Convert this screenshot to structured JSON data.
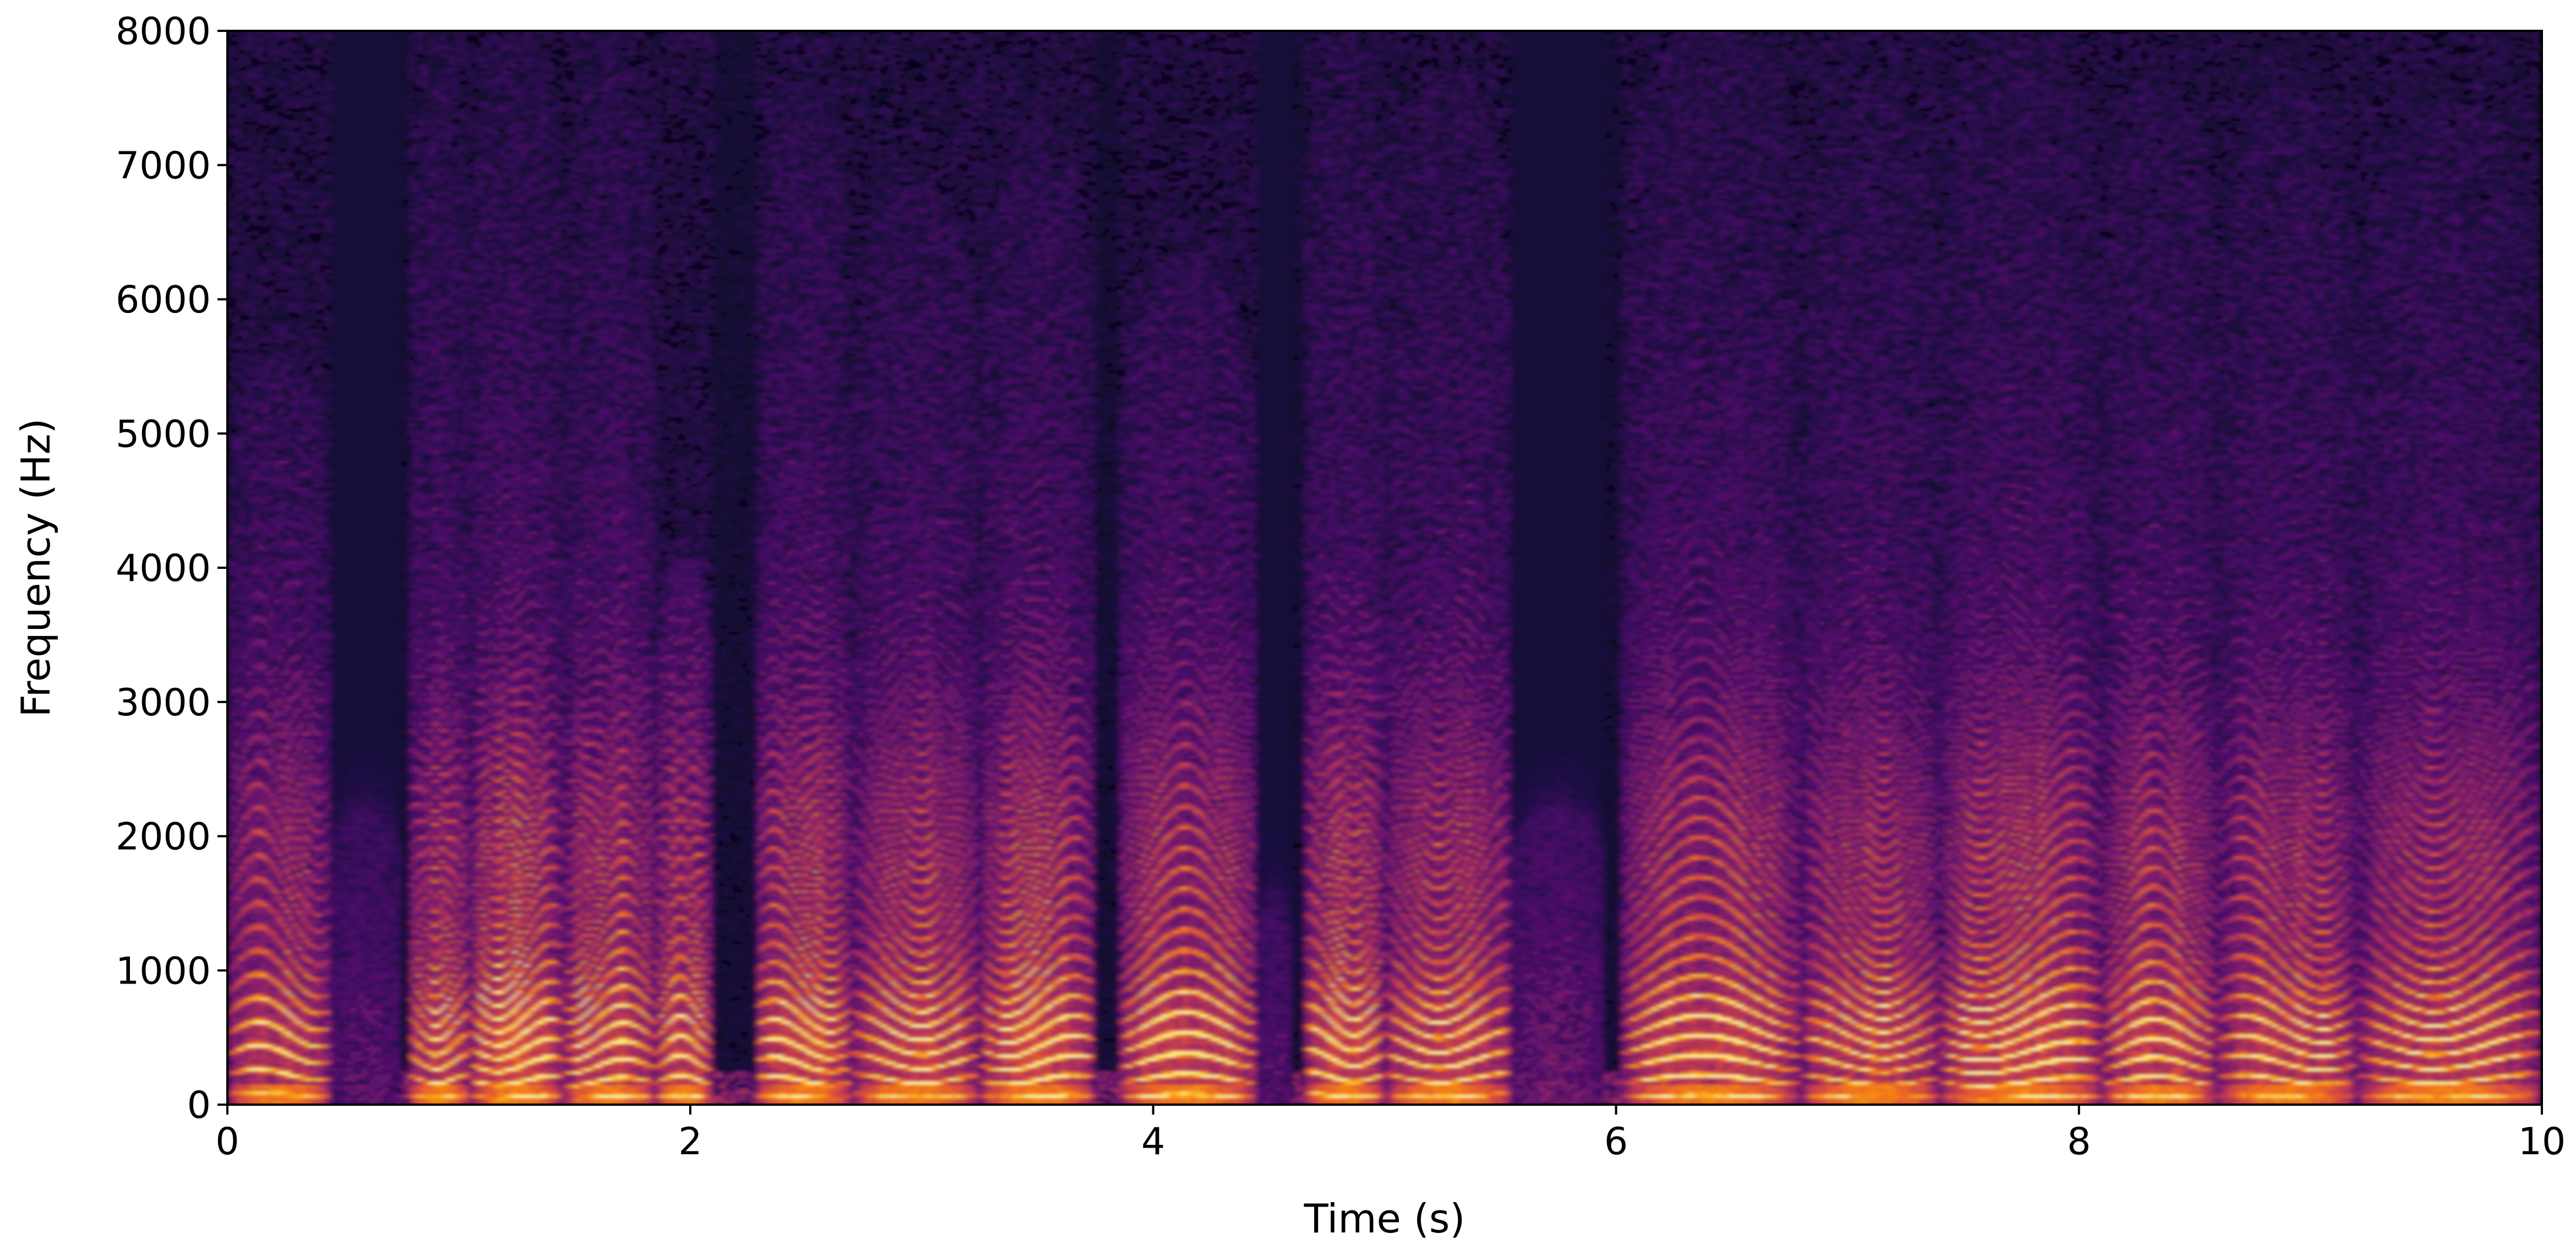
{
  "chart_data": {
    "type": "heatmap",
    "title": "",
    "xlabel": "Time (s)",
    "ylabel": "Frequency (Hz)",
    "xlim": [
      0,
      10
    ],
    "ylim": [
      0,
      8000
    ],
    "x_ticks": [
      0,
      2,
      4,
      6,
      8,
      10
    ],
    "x_tick_labels": [
      "0",
      "2",
      "4",
      "6",
      "8",
      "10"
    ],
    "y_ticks": [
      0,
      1000,
      2000,
      3000,
      4000,
      5000,
      6000,
      7000,
      8000
    ],
    "y_tick_labels": [
      "0",
      "1000",
      "2000",
      "3000",
      "4000",
      "5000",
      "6000",
      "7000",
      "8000"
    ],
    "colormap": "inferno",
    "colors": [
      "#000004",
      "#1b0c41",
      "#4a0c6b",
      "#781c6d",
      "#a52c60",
      "#cf4446",
      "#ed6925",
      "#fb9b06",
      "#f7d13d",
      "#fcffa4"
    ],
    "grid": false,
    "legend": "none",
    "segments": [
      {
        "start": 0.0,
        "end": 0.45,
        "f0": 150,
        "max_freq": 5500,
        "energy": 0.7
      },
      {
        "start": 0.45,
        "end": 0.75,
        "f0": 0,
        "max_freq": 2200,
        "energy": 0.25
      },
      {
        "start": 0.78,
        "end": 1.05,
        "f0": 130,
        "max_freq": 7800,
        "energy": 0.75
      },
      {
        "start": 1.05,
        "end": 1.45,
        "f0": 120,
        "max_freq": 8000,
        "energy": 1.0
      },
      {
        "start": 1.45,
        "end": 1.85,
        "f0": 115,
        "max_freq": 7800,
        "energy": 0.85
      },
      {
        "start": 1.85,
        "end": 2.1,
        "f0": 125,
        "max_freq": 4000,
        "energy": 0.8
      },
      {
        "start": 2.28,
        "end": 2.7,
        "f0": 120,
        "max_freq": 7500,
        "energy": 0.9
      },
      {
        "start": 2.7,
        "end": 3.25,
        "f0": 130,
        "max_freq": 6800,
        "energy": 0.8
      },
      {
        "start": 3.25,
        "end": 3.75,
        "f0": 125,
        "max_freq": 7000,
        "energy": 0.9
      },
      {
        "start": 3.85,
        "end": 4.45,
        "f0": 130,
        "max_freq": 6200,
        "energy": 0.85
      },
      {
        "start": 4.45,
        "end": 4.6,
        "f0": 0,
        "max_freq": 1500,
        "energy": 0.2
      },
      {
        "start": 4.65,
        "end": 5.0,
        "f0": 140,
        "max_freq": 7900,
        "energy": 0.85
      },
      {
        "start": 5.0,
        "end": 5.55,
        "f0": 135,
        "max_freq": 7600,
        "energy": 0.8
      },
      {
        "start": 5.55,
        "end": 5.95,
        "f0": 0,
        "max_freq": 2200,
        "energy": 0.35
      },
      {
        "start": 6.02,
        "end": 6.8,
        "f0": 125,
        "max_freq": 8000,
        "energy": 0.85
      },
      {
        "start": 6.8,
        "end": 7.4,
        "f0": 120,
        "max_freq": 7500,
        "energy": 0.75
      },
      {
        "start": 7.4,
        "end": 8.1,
        "f0": 115,
        "max_freq": 8000,
        "energy": 0.9
      },
      {
        "start": 8.1,
        "end": 8.6,
        "f0": 120,
        "max_freq": 7600,
        "energy": 0.8
      },
      {
        "start": 8.6,
        "end": 9.2,
        "f0": 125,
        "max_freq": 7500,
        "energy": 0.75
      },
      {
        "start": 9.2,
        "end": 10.0,
        "f0": 130,
        "max_freq": 7400,
        "energy": 0.75
      }
    ]
  }
}
